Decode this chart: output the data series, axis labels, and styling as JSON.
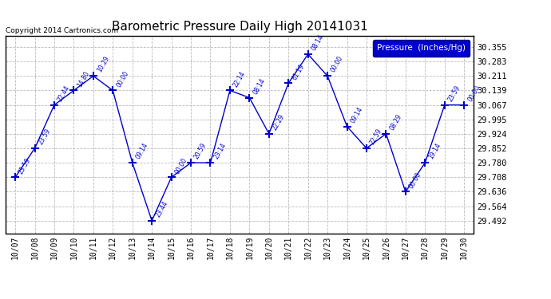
{
  "title": "Barometric Pressure Daily High 20141031",
  "copyright": "Copyright 2014 Cartronics.com",
  "legend_label": "Pressure  (Inches/Hg)",
  "x_labels": [
    "10/07",
    "10/08",
    "10/09",
    "10/10",
    "10/11",
    "10/12",
    "10/13",
    "10/14",
    "10/15",
    "10/16",
    "10/17",
    "10/18",
    "10/19",
    "10/20",
    "10/21",
    "10/22",
    "10/23",
    "10/24",
    "10/25",
    "10/26",
    "10/27",
    "10/28",
    "10/29",
    "10/30"
  ],
  "y_values": [
    29.708,
    29.852,
    30.067,
    30.139,
    30.211,
    30.139,
    29.78,
    29.492,
    29.708,
    29.78,
    29.78,
    30.139,
    30.103,
    29.924,
    30.175,
    30.319,
    30.211,
    29.96,
    29.852,
    29.924,
    29.636,
    29.78,
    30.067,
    30.067
  ],
  "point_times": [
    "23:59",
    "23:59",
    "22:44",
    "14:80",
    "10:29",
    "00:00",
    "09:14",
    "23:44",
    "00:00",
    "20:59",
    "23:14",
    "22:14",
    "08:14",
    "22:29",
    "61:19",
    "08:14",
    "00:00",
    "09:14",
    "22:59",
    "08:29",
    "00:00",
    "19:14",
    "23:59",
    "00:00"
  ],
  "y_ticks": [
    29.492,
    29.564,
    29.636,
    29.708,
    29.78,
    29.852,
    29.924,
    29.995,
    30.067,
    30.139,
    30.211,
    30.283,
    30.355
  ],
  "line_color": "#0000cc",
  "bg_color": "#ffffff",
  "grid_color": "#bbbbbb",
  "title_color": "#000000",
  "copyright_color": "#000000",
  "legend_bg": "#0000cc",
  "legend_text_color": "#ffffff",
  "figwidth": 6.9,
  "figheight": 3.75,
  "dpi": 100
}
